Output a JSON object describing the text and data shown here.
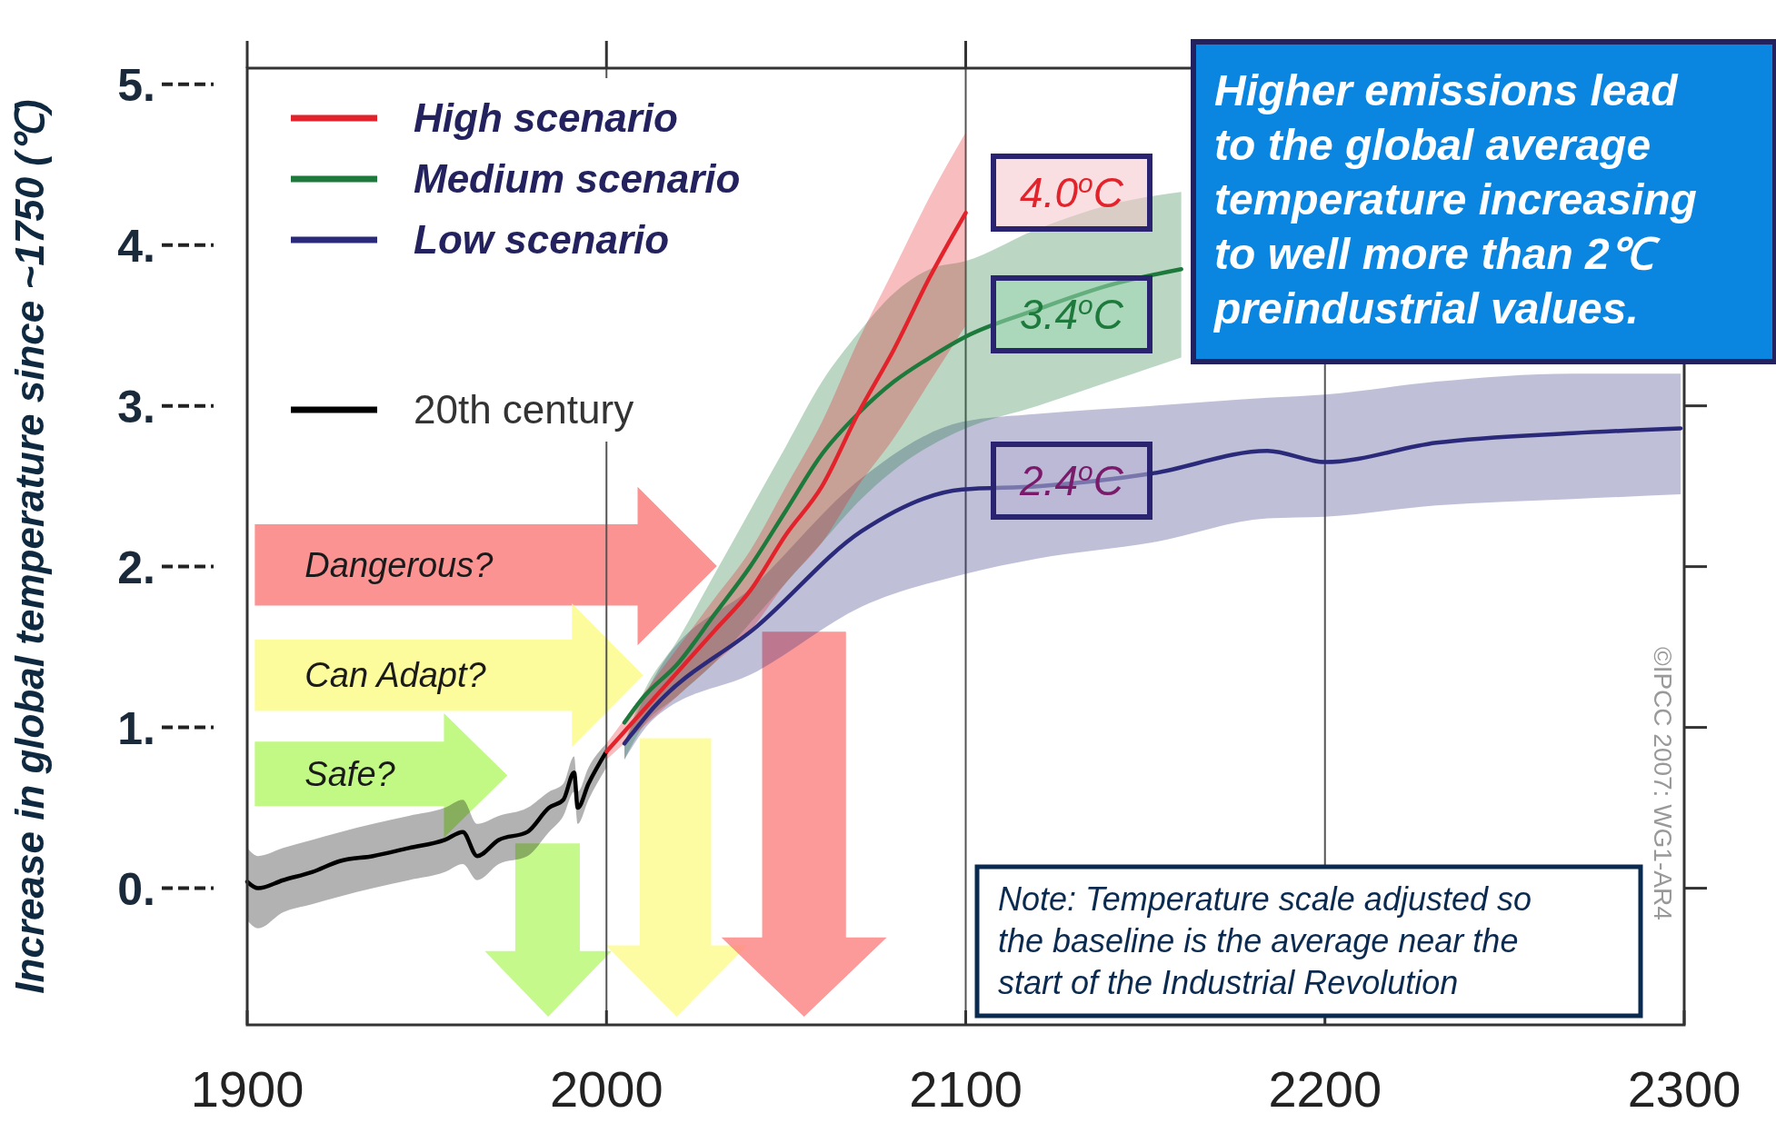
{
  "chart_data": {
    "type": "line",
    "ylabel": "Increase in global temperature since ~1750 (℃)",
    "xlim": [
      1900,
      2300
    ],
    "ylim": [
      -0.85,
      5.1
    ],
    "xticks": [
      1900,
      2000,
      2100,
      2200,
      2300
    ],
    "yticks": [
      {
        "value": 0,
        "label": "0."
      },
      {
        "value": 1,
        "label": "1."
      },
      {
        "value": 2,
        "label": "2."
      },
      {
        "value": 3,
        "label": "3."
      },
      {
        "value": 4,
        "label": "4."
      },
      {
        "value": 5,
        "label": "5."
      }
    ],
    "grid": "x",
    "legend": "top left",
    "line_style": "solid",
    "marker": "none",
    "series": [
      {
        "name": "High scenario",
        "color": "#e3232c",
        "x": [
          2000,
          2010,
          2020,
          2030,
          2040,
          2050,
          2060,
          2070,
          2080,
          2090,
          2100
        ],
        "values": [
          0.85,
          1.1,
          1.35,
          1.6,
          1.85,
          2.2,
          2.5,
          2.95,
          3.35,
          3.8,
          4.2
        ],
        "lower": [
          0.8,
          1.0,
          1.2,
          1.4,
          1.6,
          1.9,
          2.15,
          2.5,
          2.8,
          3.15,
          3.5
        ],
        "upper": [
          0.9,
          1.2,
          1.5,
          1.8,
          2.1,
          2.5,
          2.9,
          3.4,
          3.85,
          4.3,
          4.7
        ]
      },
      {
        "name": "Medium scenario",
        "color": "#1e7a3c",
        "x": [
          2005,
          2010,
          2020,
          2030,
          2040,
          2050,
          2060,
          2070,
          2080,
          2090,
          2100,
          2120,
          2140,
          2160
        ],
        "values": [
          1.03,
          1.18,
          1.4,
          1.7,
          2.0,
          2.35,
          2.7,
          2.95,
          3.15,
          3.3,
          3.43,
          3.6,
          3.75,
          3.85
        ],
        "lower": [
          0.8,
          1.0,
          1.2,
          1.4,
          1.65,
          1.9,
          2.15,
          2.4,
          2.6,
          2.75,
          2.86,
          3.0,
          3.15,
          3.3
        ],
        "upper": [
          0.9,
          1.2,
          1.55,
          1.95,
          2.35,
          2.75,
          3.15,
          3.45,
          3.7,
          3.85,
          3.9,
          4.1,
          4.25,
          4.33
        ]
      },
      {
        "name": "Low scenario",
        "color": "#2b2a7a",
        "x": [
          2005,
          2013,
          2042,
          2071,
          2099,
          2120,
          2152,
          2184,
          2200,
          2231,
          2269,
          2299
        ],
        "values": [
          0.9,
          1.12,
          1.63,
          2.22,
          2.48,
          2.5,
          2.58,
          2.72,
          2.65,
          2.77,
          2.83,
          2.86
        ],
        "lower": [
          0.8,
          1.05,
          1.35,
          1.75,
          1.95,
          2.05,
          2.15,
          2.3,
          2.31,
          2.38,
          2.42,
          2.45
        ],
        "upper": [
          0.9,
          1.3,
          1.9,
          2.55,
          2.9,
          2.95,
          3.0,
          3.05,
          3.07,
          3.15,
          3.2,
          3.2
        ]
      },
      {
        "name": "20th century",
        "color": "#000000",
        "x": [
          1900,
          1903,
          1910,
          1918,
          1926,
          1935,
          1945,
          1955,
          1960,
          1964,
          1970,
          1978,
          1984,
          1988,
          1991,
          1992,
          1995,
          2000
        ],
        "values": [
          0.04,
          0.0,
          0.05,
          0.1,
          0.17,
          0.2,
          0.25,
          0.3,
          0.35,
          0.2,
          0.3,
          0.35,
          0.5,
          0.55,
          0.72,
          0.5,
          0.65,
          0.85
        ],
        "lower": [
          -0.2,
          -0.25,
          -0.15,
          -0.1,
          -0.05,
          0.0,
          0.05,
          0.1,
          0.15,
          0.05,
          0.15,
          0.2,
          0.35,
          0.45,
          0.6,
          0.4,
          0.55,
          0.75
        ],
        "upper": [
          0.25,
          0.2,
          0.25,
          0.3,
          0.35,
          0.4,
          0.45,
          0.5,
          0.55,
          0.4,
          0.45,
          0.5,
          0.6,
          0.65,
          0.82,
          0.6,
          0.75,
          0.9
        ]
      }
    ],
    "annotations": [
      "Dangerous?",
      "Can Adapt?",
      "Safe?",
      "4.0$^{o}$C",
      "3.4$^{o}$C",
      "2.4$^{o}$C",
      "Higher emissions lead\nto  the global average\ntemperature increasing\nto well more than 2℃\npreindustrial values.",
      "Note: Temperature scale adjusted so\nthe baseline is the average near the\nstart of the Industrial Revolution",
      "©IPCC 2007: WG1-AR4"
    ]
  }
}
